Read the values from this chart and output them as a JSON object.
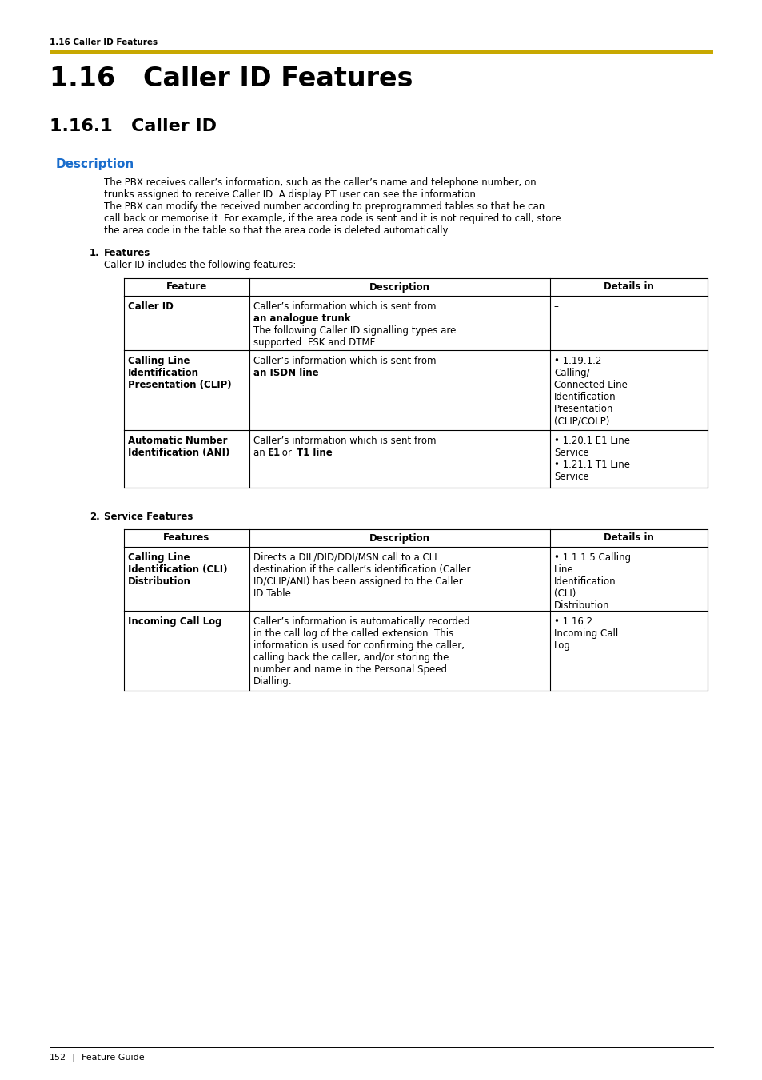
{
  "page_bg": "#ffffff",
  "header_text": "1.16 Caller ID Features",
  "header_line_color": "#C8A800",
  "chapter_title": "1.16   Caller ID Features",
  "section_title": "1.16.1   Caller ID",
  "description_label": "Description",
  "description_color": "#1a6dcc",
  "body_text_1a": "The PBX receives caller’s information, such as the caller’s name and telephone number, on",
  "body_text_1b": "trunks assigned to receive Caller ID. A display PT user can see the information.",
  "body_text_2a": "The PBX can modify the received number according to preprogrammed tables so that he can",
  "body_text_2b": "call back or memorise it. For example, if the area code is sent and it is not required to call, store",
  "body_text_2c": "the area code in the table so that the area code is deleted automatically.",
  "numbered_1": "1.",
  "features_label": "Features",
  "features_sub": "Caller ID includes the following features:",
  "table1_headers": [
    "Feature",
    "Description",
    "Details in"
  ],
  "table2_headers": [
    "Features",
    "Description",
    "Details in"
  ],
  "numbered_2": "2.",
  "service_label": "Service Features",
  "footer_page": "152",
  "footer_text": "Feature Guide",
  "footer_sep_text": "|"
}
